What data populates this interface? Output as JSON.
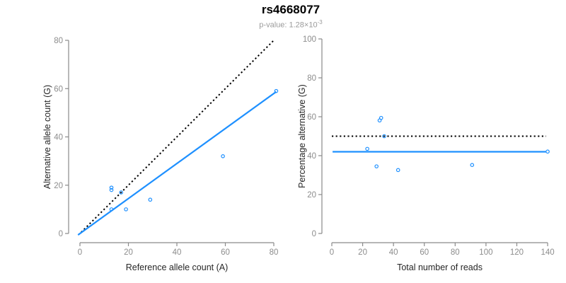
{
  "header": {
    "title": "rs4668077",
    "pvalue_prefix": "p-value: ",
    "pvalue_base": "1.28×10",
    "pvalue_exponent": "-3"
  },
  "colors": {
    "accent_blue": "#1E90FF",
    "axis_gray": "#8a8a8a",
    "tick_label_gray": "#8c8c8c",
    "axis_title_dark": "#262626",
    "dotted_black": "#000000"
  },
  "chart_data": [
    {
      "name": "allele-counts-scatter",
      "type": "scatter",
      "title": "",
      "xlabel": "Reference allele count (A)",
      "ylabel": "Alternative allele count (G)",
      "xlim": [
        0,
        80
      ],
      "ylim": [
        0,
        80
      ],
      "xticks": [
        0,
        20,
        40,
        60,
        80
      ],
      "yticks": [
        0,
        20,
        40,
        60,
        80
      ],
      "grid": false,
      "legend": "none",
      "point_color": "#1E90FF",
      "points": [
        [
          13,
          19
        ],
        [
          13,
          18
        ],
        [
          17,
          17
        ],
        [
          13,
          10
        ],
        [
          19,
          10
        ],
        [
          29,
          14
        ],
        [
          59,
          32
        ],
        [
          81,
          59
        ]
      ],
      "lines": [
        {
          "name": "identity-line",
          "style": "dotted",
          "color": "#000000",
          "width": 2,
          "x": [
            0.5,
            80.4
          ],
          "y": [
            0.5,
            80.4
          ]
        },
        {
          "name": "regression-line",
          "style": "solid",
          "color": "#1E90FF",
          "width": 2.2,
          "x": [
            -0.8,
            81.0
          ],
          "y": [
            -0.6,
            58.7
          ]
        }
      ]
    },
    {
      "name": "percentage-vs-reads-scatter",
      "type": "scatter",
      "title": "",
      "xlabel": "Total number of reads",
      "ylabel": "Percentage alternative (G)",
      "xlim": [
        0,
        140
      ],
      "ylim": [
        0,
        100
      ],
      "xticks": [
        0,
        20,
        40,
        60,
        80,
        100,
        120,
        140
      ],
      "yticks": [
        0,
        20,
        40,
        60,
        80,
        100
      ],
      "grid": false,
      "legend": "none",
      "point_color": "#1E90FF",
      "points": [
        [
          32,
          59.4
        ],
        [
          31,
          58.1
        ],
        [
          34,
          50
        ],
        [
          23,
          43.5
        ],
        [
          29,
          34.5
        ],
        [
          43,
          32.6
        ],
        [
          91,
          35.2
        ],
        [
          140,
          42.1
        ]
      ],
      "lines": [
        {
          "name": "expected-50pct-line",
          "style": "dotted",
          "color": "#000000",
          "width": 2,
          "x": [
            0,
            139
          ],
          "y": [
            50,
            50
          ]
        },
        {
          "name": "mean-percentage-line",
          "style": "solid",
          "color": "#1E90FF",
          "width": 2.2,
          "x": [
            0.5,
            139
          ],
          "y": [
            42,
            42
          ]
        }
      ]
    }
  ]
}
